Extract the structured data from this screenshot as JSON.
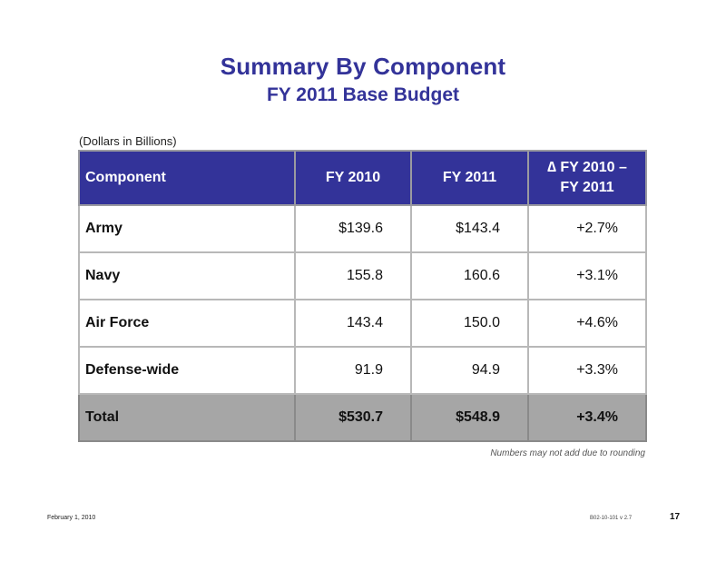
{
  "slide": {
    "title": "Summary By Component",
    "subtitle": "FY 2011 Base Budget",
    "units": "(Dollars in Billions)",
    "note": "Numbers may not add due to rounding",
    "footer_date": "February 1, 2010",
    "footer_code": "B02-10-101 v 2.7",
    "page_number": "17"
  },
  "table": {
    "headers": [
      "Component",
      "FY 2010",
      "FY 2011",
      "∆ FY 2010 – FY 2011"
    ],
    "header_delta_line1": "∆ FY 2010 –",
    "header_delta_line2": "FY 2011",
    "rows": [
      {
        "component": "Army",
        "fy2010": "$139.6",
        "fy2011": "$143.4",
        "delta": "+2.7%"
      },
      {
        "component": "Navy",
        "fy2010": "155.8",
        "fy2011": "160.6",
        "delta": "+3.1%"
      },
      {
        "component": "Air Force",
        "fy2010": "143.4",
        "fy2011": "150.0",
        "delta": "+4.6%"
      },
      {
        "component": "Defense-wide",
        "fy2010": "91.9",
        "fy2011": "94.9",
        "delta": "+3.3%"
      }
    ],
    "total": {
      "component": "Total",
      "fy2010": "$530.7",
      "fy2011": "$548.9",
      "delta": "+3.4%"
    }
  },
  "colors": {
    "title": "#333399",
    "header_bg": "#333399",
    "total_bg": "#a6a6a6"
  }
}
